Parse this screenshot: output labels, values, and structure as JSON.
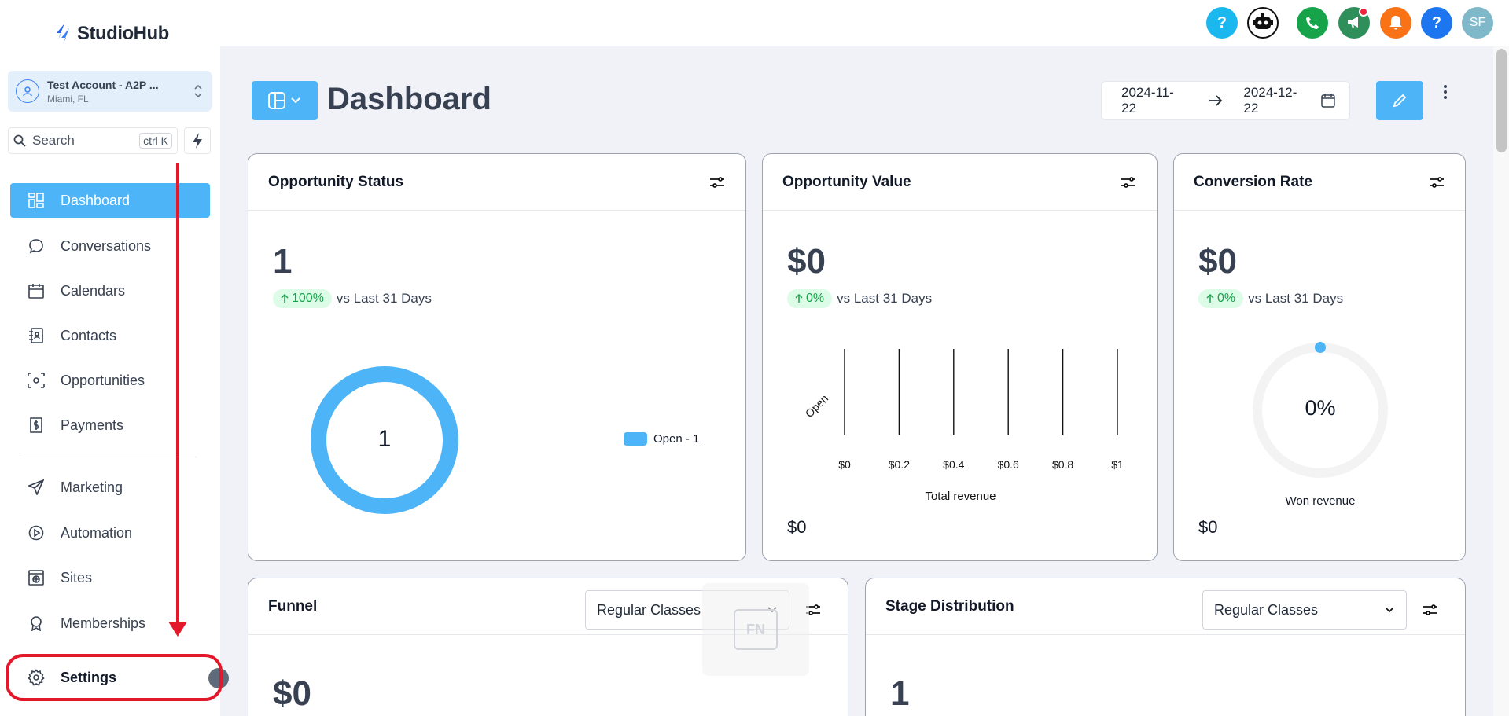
{
  "app": {
    "name": "StudioHub"
  },
  "account": {
    "name": "Test Account - A2P ...",
    "location": "Miami, FL"
  },
  "search": {
    "label": "Search",
    "shortcut": "ctrl K"
  },
  "sidebar": {
    "items": [
      {
        "label": "Dashboard",
        "icon": "dashboard-grid-icon",
        "active": true
      },
      {
        "label": "Conversations",
        "icon": "chat-bubble-icon"
      },
      {
        "label": "Calendars",
        "icon": "calendar-icon"
      },
      {
        "label": "Contacts",
        "icon": "contacts-book-icon"
      },
      {
        "label": "Opportunities",
        "icon": "opportunities-icon"
      },
      {
        "label": "Payments",
        "icon": "payments-icon"
      },
      {
        "label": "Marketing",
        "icon": "send-icon"
      },
      {
        "label": "Automation",
        "icon": "automation-icon"
      },
      {
        "label": "Sites",
        "icon": "globe-icon"
      },
      {
        "label": "Memberships",
        "icon": "badge-icon"
      },
      {
        "label": "Settings",
        "icon": "gear-icon"
      }
    ]
  },
  "topbar": {
    "icons": [
      {
        "name": "help-icon",
        "color": "#1bb8f0"
      },
      {
        "name": "robot-icon",
        "color": "#111111"
      },
      {
        "name": "phone-icon",
        "color": "#16a34a"
      },
      {
        "name": "megaphone-icon",
        "color": "#2f8f5b"
      },
      {
        "name": "bell-icon",
        "color": "#f97316"
      },
      {
        "name": "help-icon",
        "color": "#1d75f0"
      }
    ],
    "avatar_initials": "SF"
  },
  "header": {
    "title": "Dashboard",
    "date_start": "2024-11-22",
    "date_end": "2024-12-22"
  },
  "cards": {
    "opportunity_status": {
      "title": "Opportunity Status",
      "value": "1",
      "trend": "100%",
      "trend_text": "vs Last 31 Days",
      "donut_center": "1",
      "legend": "Open - 1"
    },
    "opportunity_value": {
      "title": "Opportunity Value",
      "value": "$0",
      "trend": "0%",
      "trend_text": "vs Last 31 Days",
      "footer": "$0"
    },
    "conversion_rate": {
      "title": "Conversion Rate",
      "value": "$0",
      "trend": "0%",
      "trend_text": "vs Last 31 Days",
      "gauge_value": "0%",
      "gauge_label": "Won revenue",
      "footer": "$0"
    },
    "funnel": {
      "title": "Funnel",
      "select": "Regular Classes",
      "value": "$0"
    },
    "stage_distribution": {
      "title": "Stage Distribution",
      "select": "Regular Classes",
      "value": "1"
    }
  },
  "chart_data": {
    "type": "bar",
    "categories": [
      "Open"
    ],
    "values": [
      0
    ],
    "xlabel": "Total revenue",
    "ylabel": "",
    "x_ticks": [
      "$0",
      "$0.2",
      "$0.4",
      "$0.6",
      "$0.8",
      "$1"
    ],
    "xlim": [
      0,
      1
    ]
  },
  "overlay": {
    "fn_key": "FN"
  }
}
